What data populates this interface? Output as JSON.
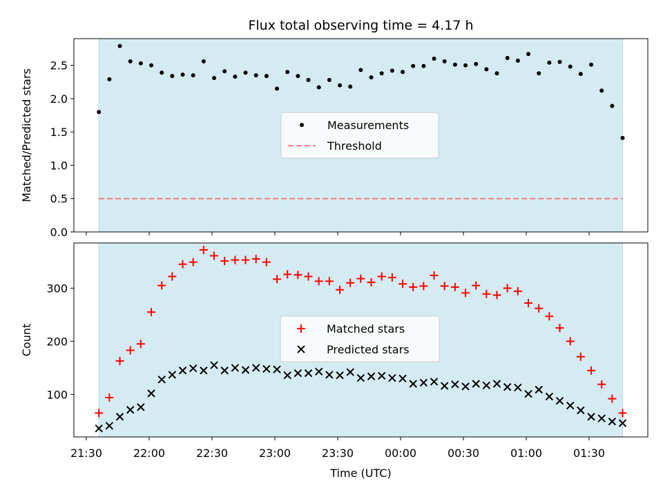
{
  "chart_data": [
    {
      "type": "scatter",
      "title": "Flux total observing time = 4.17 h",
      "ylabel": "Matched/Predicted stars",
      "xlabel": "",
      "ylim": [
        0,
        2.9
      ],
      "yticks": [
        "0.0",
        "0.5",
        "1.0",
        "1.5",
        "2.0",
        "2.5"
      ],
      "grid": false,
      "legend_position": "center",
      "shaded_x_range": [
        "21:36",
        "01:46"
      ],
      "shade_color": "#d4ebf1",
      "threshold": 0.5,
      "legend": [
        "Measurements",
        "Threshold"
      ],
      "series": [
        {
          "name": "Measurements",
          "color": "#000000",
          "marker": "dot",
          "x": [
            "21:36",
            "21:41",
            "21:46",
            "21:51",
            "21:56",
            "22:01",
            "22:06",
            "22:11",
            "22:16",
            "22:21",
            "22:26",
            "22:31",
            "22:36",
            "22:41",
            "22:46",
            "22:51",
            "22:56",
            "23:01",
            "23:06",
            "23:11",
            "23:16",
            "23:21",
            "23:26",
            "23:31",
            "23:36",
            "23:41",
            "23:46",
            "23:51",
            "23:56",
            "24:01",
            "24:06",
            "24:11",
            "24:16",
            "24:21",
            "24:26",
            "24:31",
            "24:36",
            "24:41",
            "24:46",
            "24:51",
            "24:56",
            "25:01",
            "25:06",
            "25:11",
            "25:16",
            "25:21",
            "25:26",
            "25:31",
            "25:36",
            "25:41",
            "25:46"
          ],
          "values": [
            1.8,
            2.29,
            2.79,
            2.56,
            2.53,
            2.5,
            2.39,
            2.34,
            2.36,
            2.35,
            2.56,
            2.31,
            2.41,
            2.33,
            2.39,
            2.35,
            2.34,
            2.15,
            2.4,
            2.34,
            2.28,
            2.17,
            2.28,
            2.2,
            2.18,
            2.43,
            2.32,
            2.38,
            2.42,
            2.4,
            2.49,
            2.49,
            2.6,
            2.56,
            2.51,
            2.5,
            2.52,
            2.44,
            2.38,
            2.61,
            2.57,
            2.67,
            2.38,
            2.54,
            2.55,
            2.48,
            2.37,
            2.51,
            2.12,
            1.89,
            1.41
          ]
        },
        {
          "name": "Threshold",
          "color": "#f08080",
          "style": "dashed",
          "values": [
            0.5,
            0.5
          ]
        }
      ]
    },
    {
      "type": "scatter",
      "title": "",
      "ylabel": "Count",
      "xlabel": "Time (UTC)",
      "ylim": [
        20,
        385
      ],
      "yticks": [
        "100",
        "200",
        "300"
      ],
      "xticks": [
        "21:30",
        "22:00",
        "22:30",
        "23:00",
        "23:30",
        "00:00",
        "00:30",
        "01:00",
        "01:30"
      ],
      "grid": false,
      "legend_position": "center",
      "legend": [
        "Matched stars",
        "Predicted stars"
      ],
      "series": [
        {
          "name": "Matched stars",
          "color": "#ff0000",
          "marker": "plus",
          "x": [
            "21:36",
            "21:41",
            "21:46",
            "21:51",
            "21:56",
            "22:01",
            "22:06",
            "22:11",
            "22:16",
            "22:21",
            "22:26",
            "22:31",
            "22:36",
            "22:41",
            "22:46",
            "22:51",
            "22:56",
            "23:01",
            "23:06",
            "23:11",
            "23:16",
            "23:21",
            "23:26",
            "23:31",
            "23:36",
            "23:41",
            "23:46",
            "23:51",
            "23:56",
            "24:01",
            "24:06",
            "24:11",
            "24:16",
            "24:21",
            "24:26",
            "24:31",
            "24:36",
            "24:41",
            "24:46",
            "24:51",
            "24:56",
            "25:01",
            "25:06",
            "25:11",
            "25:16",
            "25:21",
            "25:26",
            "25:31",
            "25:36",
            "25:41",
            "25:46"
          ],
          "values": [
            65,
            94,
            163,
            183,
            195,
            255,
            305,
            322,
            345,
            349,
            372,
            361,
            351,
            353,
            353,
            355,
            349,
            317,
            326,
            325,
            322,
            313,
            313,
            297,
            310,
            318,
            311,
            322,
            320,
            308,
            302,
            304,
            324,
            304,
            302,
            291,
            305,
            289,
            287,
            300,
            294,
            272,
            262,
            247,
            225,
            200,
            171,
            145,
            119,
            92,
            65
          ]
        },
        {
          "name": "Predicted stars",
          "color": "#000000",
          "marker": "x",
          "x": [
            "21:36",
            "21:41",
            "21:46",
            "21:51",
            "21:56",
            "22:01",
            "22:06",
            "22:11",
            "22:16",
            "22:21",
            "22:26",
            "22:31",
            "22:36",
            "22:41",
            "22:46",
            "22:51",
            "22:56",
            "23:01",
            "23:06",
            "23:11",
            "23:16",
            "23:21",
            "23:26",
            "23:31",
            "23:36",
            "23:41",
            "23:46",
            "23:51",
            "23:56",
            "24:01",
            "24:06",
            "24:11",
            "24:16",
            "24:21",
            "24:26",
            "24:31",
            "24:36",
            "24:41",
            "24:46",
            "24:51",
            "24:56",
            "25:01",
            "25:06",
            "25:11",
            "25:16",
            "25:21",
            "25:26",
            "25:31",
            "25:36",
            "25:41",
            "25:46"
          ],
          "values": [
            36,
            41,
            58,
            71,
            76,
            102,
            128,
            137,
            145,
            149,
            145,
            155,
            145,
            150,
            146,
            150,
            148,
            147,
            136,
            140,
            140,
            143,
            137,
            136,
            142,
            131,
            134,
            135,
            131,
            130,
            120,
            122,
            124,
            116,
            119,
            115,
            120,
            117,
            120,
            114,
            113,
            101,
            109,
            96,
            88,
            79,
            70,
            58,
            55,
            49,
            46
          ]
        }
      ]
    }
  ]
}
